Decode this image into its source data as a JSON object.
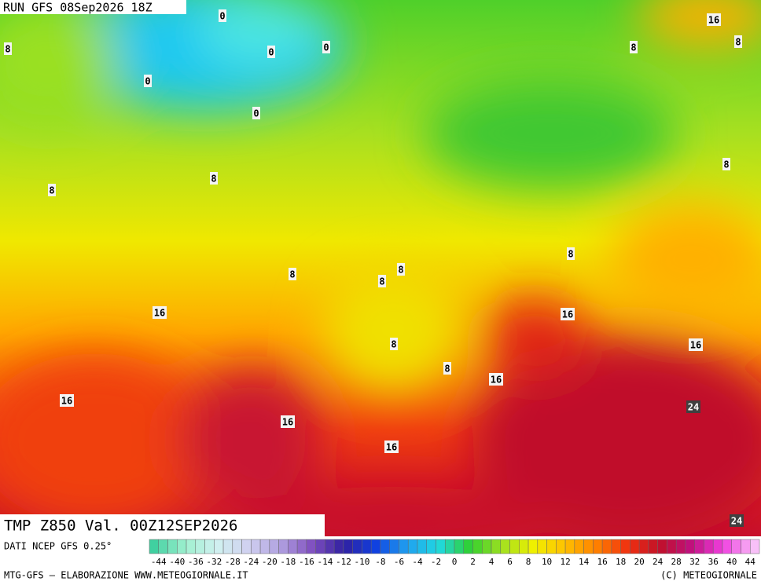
{
  "header": {
    "run": "RUN GFS 08Sep2026 18Z"
  },
  "map": {
    "contour_labels": [
      "0",
      "0",
      "0",
      "0",
      "0",
      "8",
      "8",
      "8",
      "8",
      "8",
      "8",
      "8",
      "8",
      "8",
      "8",
      "8",
      "8",
      "16",
      "16",
      "16",
      "16",
      "16",
      "16",
      "16",
      "16",
      "24",
      "24"
    ]
  },
  "footer": {
    "title": "TMP Z850 Val. 00Z12SEP2026",
    "source": "DATI NCEP GFS 0.25°",
    "credit": "MTG-GFS — ELABORAZIONE WWW.METEOGIORNALE.IT",
    "copyright": "(C) METEOGIORNALE"
  },
  "legend": {
    "labels": [
      -44,
      -40,
      -36,
      -32,
      -28,
      -24,
      -20,
      -18,
      -16,
      -14,
      -12,
      -10,
      -8,
      -6,
      -4,
      -2,
      0,
      2,
      4,
      6,
      8,
      10,
      12,
      14,
      16,
      18,
      20,
      24,
      28,
      32,
      36,
      40,
      44
    ]
  }
}
